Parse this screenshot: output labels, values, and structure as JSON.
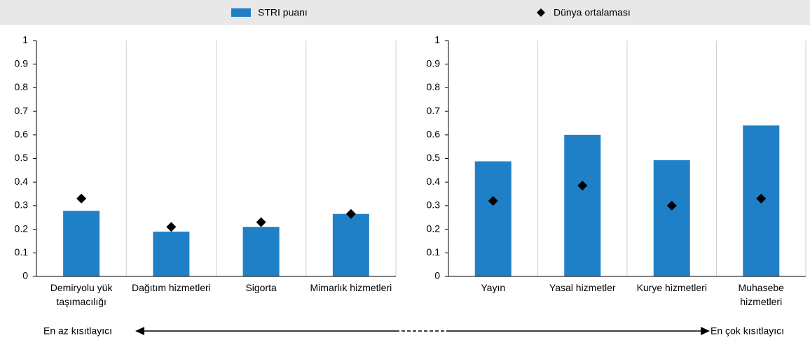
{
  "chart_data": [
    {
      "type": "bar",
      "categories": [
        "Demiryolu yük taşımacılığı",
        "Dağıtım hizmetleri",
        "Sigorta",
        "Mimarlık hizmetleri"
      ],
      "series": [
        {
          "name": "STRI puanı",
          "type": "bar",
          "color": "#1f80c8",
          "values": [
            0.278,
            0.19,
            0.21,
            0.265
          ]
        },
        {
          "name": "Dünya ortalaması",
          "type": "diamond",
          "color": "#000000",
          "values": [
            0.33,
            0.21,
            0.23,
            0.265
          ]
        }
      ],
      "ylim": [
        0,
        1
      ],
      "yticks": [
        0,
        0.1,
        0.2,
        0.3,
        0.4,
        0.5,
        0.6,
        0.7,
        0.8,
        0.9,
        1
      ],
      "grid": true
    },
    {
      "type": "bar",
      "categories": [
        "Yayın",
        "Yasal hizmetler",
        "Kurye hizmetleri",
        "Muhasebe hizmetleri"
      ],
      "series": [
        {
          "name": "STRI puanı",
          "type": "bar",
          "color": "#1f80c8",
          "values": [
            0.488,
            0.6,
            0.493,
            0.64
          ]
        },
        {
          "name": "Dünya ortalaması",
          "type": "diamond",
          "color": "#000000",
          "values": [
            0.32,
            0.385,
            0.3,
            0.33
          ]
        }
      ],
      "ylim": [
        0,
        1
      ],
      "yticks": [
        0,
        0.1,
        0.2,
        0.3,
        0.4,
        0.5,
        0.6,
        0.7,
        0.8,
        0.9,
        1
      ],
      "grid": true
    }
  ],
  "annotations": [
    "En az kısıtlayıcı",
    "En çok kısıtlayıcı"
  ]
}
